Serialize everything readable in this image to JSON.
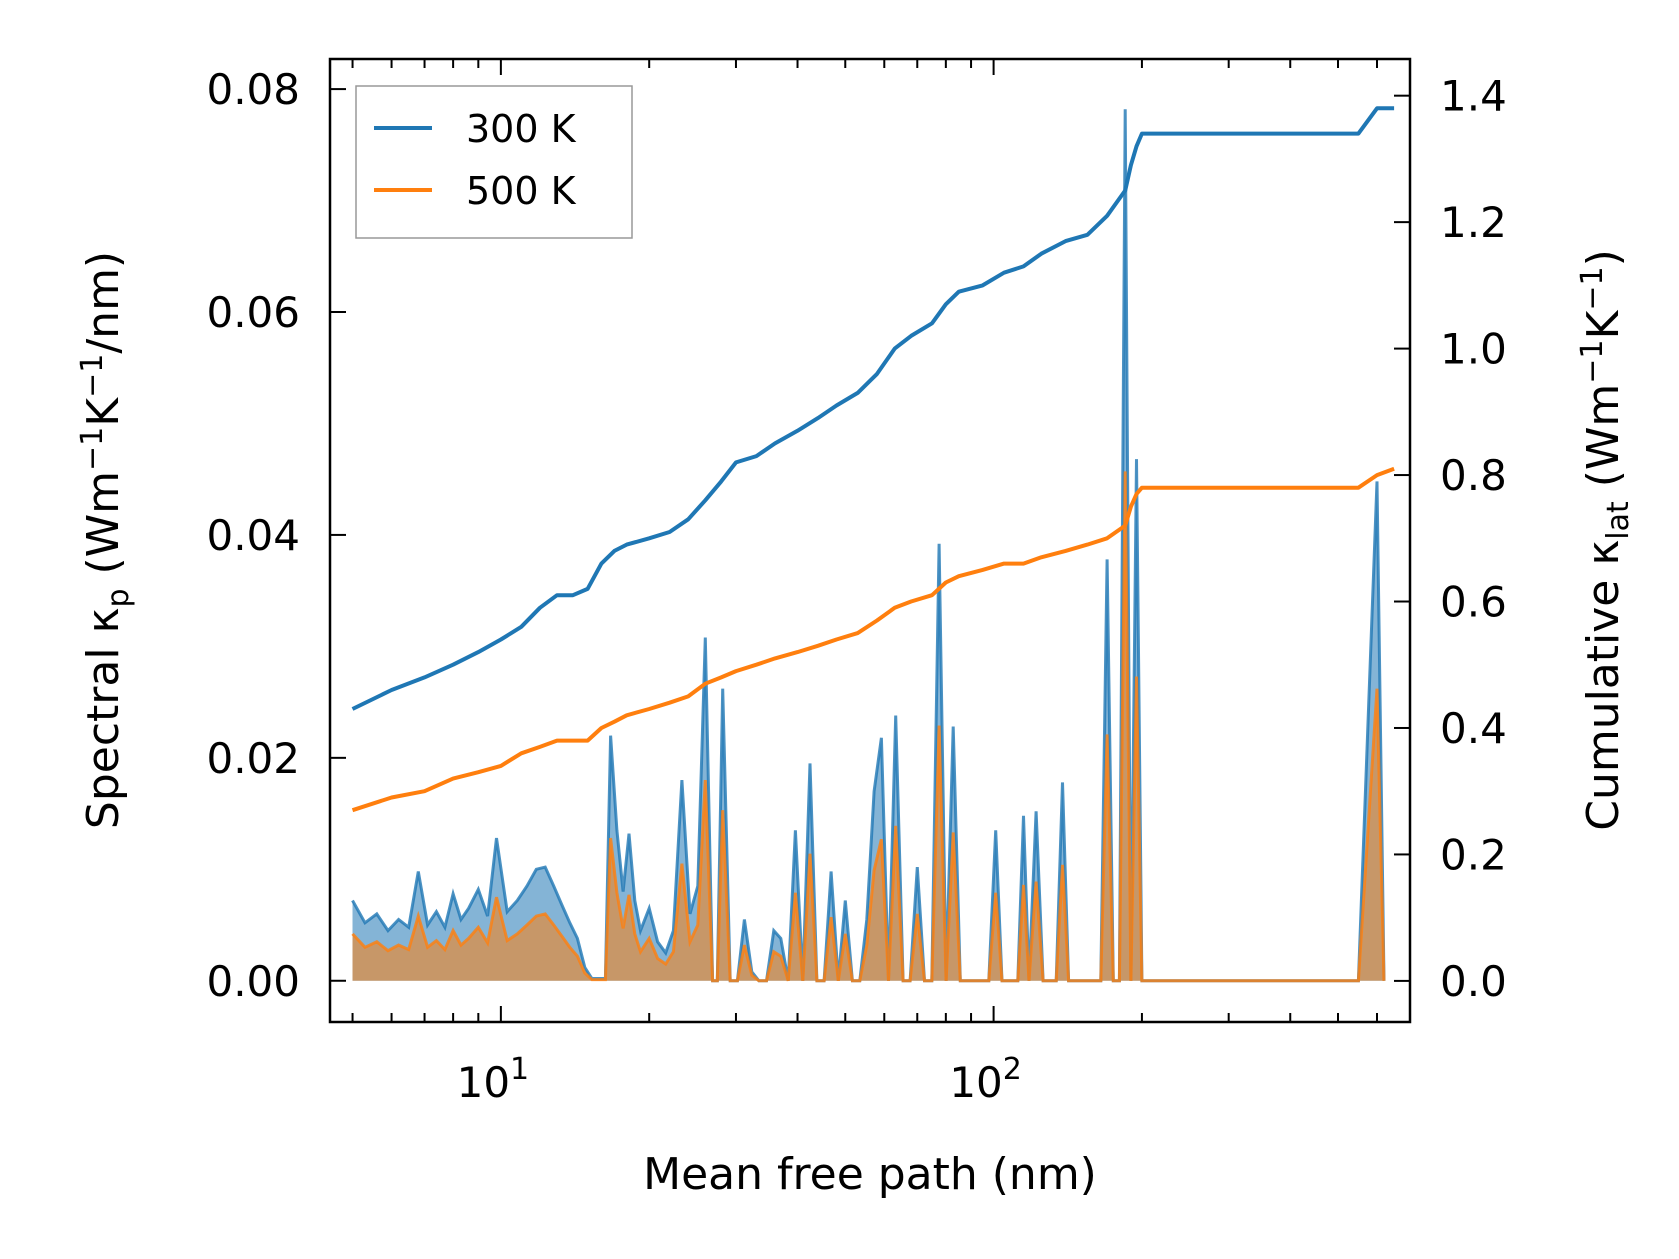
{
  "chart_data": {
    "type": "line+area",
    "x_scale": "log",
    "xlim": [
      4.5,
      700
    ],
    "ylim_left": [
      -0.0037,
      0.0827
    ],
    "ylim_right": [
      -0.065,
      1.458
    ],
    "xlabel": "Mean free path (nm)",
    "ylabel_left": {
      "main": "Spectral κ",
      "sub": "p",
      "unit_pre": " (Wm",
      "exp1": "−1",
      "unit_mid": "K",
      "exp2": "−1",
      "unit_post": "/nm)"
    },
    "ylabel_right": {
      "main": "Cumulative κ",
      "sub": "lat",
      "unit_pre": " (Wm",
      "exp1": "−1",
      "unit_mid": "K",
      "exp2": "−1",
      "unit_post": ")"
    },
    "x_ticks": [
      {
        "value": 10,
        "base": "10",
        "exp": "1"
      },
      {
        "value": 100,
        "base": "10",
        "exp": "2"
      }
    ],
    "y_left_ticks": [
      "0.00",
      "0.02",
      "0.04",
      "0.06",
      "0.08"
    ],
    "y_right_ticks": [
      "0.0",
      "0.2",
      "0.4",
      "0.6",
      "0.8",
      "1.0",
      "1.2",
      "1.4"
    ],
    "legend": {
      "position": "upper-left",
      "entries": [
        {
          "label": "300 K",
          "color": "#1f77b4"
        },
        {
          "label": "500 K",
          "color": "#ff7f0e"
        }
      ]
    },
    "cumulative_series": [
      {
        "name": "300 K",
        "color": "#1f77b4",
        "axis": "right",
        "points": [
          [
            5,
            0.43
          ],
          [
            6,
            0.46
          ],
          [
            7,
            0.48
          ],
          [
            8,
            0.5
          ],
          [
            9,
            0.52
          ],
          [
            10,
            0.54
          ],
          [
            11,
            0.56
          ],
          [
            12,
            0.59
          ],
          [
            13,
            0.61
          ],
          [
            14,
            0.61
          ],
          [
            15,
            0.62
          ],
          [
            16,
            0.66
          ],
          [
            17,
            0.68
          ],
          [
            18,
            0.69
          ],
          [
            20,
            0.7
          ],
          [
            22,
            0.71
          ],
          [
            24,
            0.73
          ],
          [
            26,
            0.76
          ],
          [
            28,
            0.79
          ],
          [
            30,
            0.82
          ],
          [
            33,
            0.83
          ],
          [
            36,
            0.85
          ],
          [
            40,
            0.87
          ],
          [
            44,
            0.89
          ],
          [
            48,
            0.91
          ],
          [
            53,
            0.93
          ],
          [
            58,
            0.96
          ],
          [
            63,
            1.0
          ],
          [
            68,
            1.02
          ],
          [
            75,
            1.04
          ],
          [
            80,
            1.07
          ],
          [
            85,
            1.09
          ],
          [
            95,
            1.1
          ],
          [
            105,
            1.12
          ],
          [
            115,
            1.13
          ],
          [
            125,
            1.15
          ],
          [
            140,
            1.17
          ],
          [
            155,
            1.18
          ],
          [
            170,
            1.21
          ],
          [
            185,
            1.25
          ],
          [
            190,
            1.29
          ],
          [
            195,
            1.32
          ],
          [
            200,
            1.34
          ],
          [
            550,
            1.34
          ],
          [
            600,
            1.38
          ],
          [
            650,
            1.38
          ]
        ]
      },
      {
        "name": "500 K",
        "color": "#ff7f0e",
        "axis": "right",
        "points": [
          [
            5,
            0.27
          ],
          [
            6,
            0.29
          ],
          [
            7,
            0.3
          ],
          [
            8,
            0.32
          ],
          [
            9,
            0.33
          ],
          [
            10,
            0.34
          ],
          [
            11,
            0.36
          ],
          [
            12,
            0.37
          ],
          [
            13,
            0.38
          ],
          [
            15,
            0.38
          ],
          [
            16,
            0.4
          ],
          [
            17,
            0.41
          ],
          [
            18,
            0.42
          ],
          [
            20,
            0.43
          ],
          [
            22,
            0.44
          ],
          [
            24,
            0.45
          ],
          [
            26,
            0.47
          ],
          [
            28,
            0.48
          ],
          [
            30,
            0.49
          ],
          [
            33,
            0.5
          ],
          [
            36,
            0.51
          ],
          [
            40,
            0.52
          ],
          [
            44,
            0.53
          ],
          [
            48,
            0.54
          ],
          [
            53,
            0.55
          ],
          [
            58,
            0.57
          ],
          [
            63,
            0.59
          ],
          [
            68,
            0.6
          ],
          [
            75,
            0.61
          ],
          [
            80,
            0.63
          ],
          [
            85,
            0.64
          ],
          [
            95,
            0.65
          ],
          [
            105,
            0.66
          ],
          [
            115,
            0.66
          ],
          [
            125,
            0.67
          ],
          [
            140,
            0.68
          ],
          [
            155,
            0.69
          ],
          [
            170,
            0.7
          ],
          [
            185,
            0.72
          ],
          [
            190,
            0.75
          ],
          [
            195,
            0.77
          ],
          [
            200,
            0.78
          ],
          [
            550,
            0.78
          ],
          [
            600,
            0.8
          ],
          [
            650,
            0.81
          ]
        ]
      }
    ],
    "spectral_series": [
      {
        "name": "300 K",
        "color": "#1f77b4",
        "axis": "left",
        "points": [
          [
            5,
            0.0072
          ],
          [
            5.3,
            0.0052
          ],
          [
            5.6,
            0.006
          ],
          [
            5.9,
            0.0045
          ],
          [
            6.2,
            0.0055
          ],
          [
            6.5,
            0.0048
          ],
          [
            6.8,
            0.0098
          ],
          [
            7.1,
            0.005
          ],
          [
            7.4,
            0.0062
          ],
          [
            7.7,
            0.0048
          ],
          [
            8,
            0.0078
          ],
          [
            8.3,
            0.0055
          ],
          [
            8.6,
            0.0065
          ],
          [
            9,
            0.0082
          ],
          [
            9.4,
            0.0058
          ],
          [
            9.8,
            0.0128
          ],
          [
            10.3,
            0.0062
          ],
          [
            10.8,
            0.0072
          ],
          [
            11.3,
            0.0085
          ],
          [
            11.8,
            0.01
          ],
          [
            12.3,
            0.0102
          ],
          [
            12.8,
            0.0085
          ],
          [
            13.3,
            0.0068
          ],
          [
            13.8,
            0.0052
          ],
          [
            14.3,
            0.0038
          ],
          [
            14.8,
            0.0012
          ],
          [
            15.3,
            0.0002
          ],
          [
            16.3,
            0.0002
          ],
          [
            16.7,
            0.022
          ],
          [
            17.2,
            0.0135
          ],
          [
            17.7,
            0.008
          ],
          [
            18.2,
            0.0132
          ],
          [
            18.7,
            0.0072
          ],
          [
            19.2,
            0.0045
          ],
          [
            20,
            0.0065
          ],
          [
            20.8,
            0.0035
          ],
          [
            21.6,
            0.0025
          ],
          [
            22.4,
            0.0045
          ],
          [
            23.3,
            0.018
          ],
          [
            24.2,
            0.006
          ],
          [
            25.1,
            0.0085
          ],
          [
            26,
            0.0308
          ],
          [
            26.9,
            0.0
          ],
          [
            27.5,
            0.0
          ],
          [
            28.2,
            0.0262
          ],
          [
            29.2,
            0.0
          ],
          [
            30.2,
            0.0
          ],
          [
            31.2,
            0.0055
          ],
          [
            32.3,
            0.0008
          ],
          [
            33.4,
            0.0
          ],
          [
            34.6,
            0.0
          ],
          [
            35.8,
            0.0045
          ],
          [
            37,
            0.0038
          ],
          [
            38.3,
            0.0
          ],
          [
            39.6,
            0.0135
          ],
          [
            41,
            0.0
          ],
          [
            42.4,
            0.0195
          ],
          [
            43.8,
            0.0
          ],
          [
            45.3,
            0.0
          ],
          [
            46.8,
            0.0098
          ],
          [
            48.4,
            0.0
          ],
          [
            50,
            0.0072
          ],
          [
            51.7,
            0.0
          ],
          [
            53.5,
            0.0
          ],
          [
            55.3,
            0.0055
          ],
          [
            57.2,
            0.017
          ],
          [
            59.2,
            0.0218
          ],
          [
            61.2,
            0.0
          ],
          [
            63.3,
            0.0238
          ],
          [
            65.5,
            0.0
          ],
          [
            67.7,
            0.0
          ],
          [
            70,
            0.0102
          ],
          [
            72.4,
            0.0
          ],
          [
            74.9,
            0.0
          ],
          [
            77.5,
            0.0392
          ],
          [
            80.1,
            0.0
          ],
          [
            82.8,
            0.0228
          ],
          [
            85.6,
            0.0
          ],
          [
            88.5,
            0.0
          ],
          [
            91.5,
            0.0
          ],
          [
            94.6,
            0.0
          ],
          [
            97.8,
            0.0
          ],
          [
            101,
            0.0135
          ],
          [
            104,
            0.0
          ],
          [
            112,
            0.0
          ],
          [
            115,
            0.0148
          ],
          [
            118,
            0.0
          ],
          [
            122,
            0.0152
          ],
          [
            126,
            0.0
          ],
          [
            130,
            0.0
          ],
          [
            134,
            0.0
          ],
          [
            138,
            0.0178
          ],
          [
            142,
            0.0
          ],
          [
            165,
            0.0
          ],
          [
            170,
            0.0378
          ],
          [
            175,
            0.0
          ],
          [
            180,
            0.0
          ],
          [
            185,
            0.0782
          ],
          [
            190,
            0.0
          ],
          [
            195,
            0.0468
          ],
          [
            200,
            0.0
          ],
          [
            550,
            0.0
          ],
          [
            600,
            0.0448
          ],
          [
            620,
            0.0
          ]
        ]
      },
      {
        "name": "500 K",
        "color": "#ff7f0e",
        "axis": "left",
        "points": [
          [
            5,
            0.0042
          ],
          [
            5.3,
            0.003
          ],
          [
            5.6,
            0.0035
          ],
          [
            5.9,
            0.0027
          ],
          [
            6.2,
            0.0032
          ],
          [
            6.5,
            0.0028
          ],
          [
            6.8,
            0.0058
          ],
          [
            7.1,
            0.003
          ],
          [
            7.4,
            0.0036
          ],
          [
            7.7,
            0.0028
          ],
          [
            8,
            0.0045
          ],
          [
            8.3,
            0.0032
          ],
          [
            8.6,
            0.0038
          ],
          [
            9,
            0.0048
          ],
          [
            9.4,
            0.0034
          ],
          [
            9.8,
            0.0075
          ],
          [
            10.3,
            0.0036
          ],
          [
            10.8,
            0.0042
          ],
          [
            11.3,
            0.005
          ],
          [
            11.8,
            0.0058
          ],
          [
            12.3,
            0.006
          ],
          [
            12.8,
            0.005
          ],
          [
            13.3,
            0.004
          ],
          [
            13.8,
            0.003
          ],
          [
            14.3,
            0.0022
          ],
          [
            14.8,
            0.0007
          ],
          [
            15.3,
            0.0001
          ],
          [
            16.3,
            0.0001
          ],
          [
            16.7,
            0.0128
          ],
          [
            17.2,
            0.0079
          ],
          [
            17.7,
            0.0047
          ],
          [
            18.2,
            0.0077
          ],
          [
            18.7,
            0.0042
          ],
          [
            19.2,
            0.0026
          ],
          [
            20,
            0.0038
          ],
          [
            20.8,
            0.002
          ],
          [
            21.6,
            0.0015
          ],
          [
            22.4,
            0.0026
          ],
          [
            23.3,
            0.0105
          ],
          [
            24.2,
            0.0035
          ],
          [
            25.1,
            0.005
          ],
          [
            26,
            0.018
          ],
          [
            26.9,
            0.0
          ],
          [
            27.5,
            0.0
          ],
          [
            28.2,
            0.0153
          ],
          [
            29.2,
            0.0
          ],
          [
            30.2,
            0.0
          ],
          [
            31.2,
            0.0032
          ],
          [
            32.3,
            0.0005
          ],
          [
            33.4,
            0.0
          ],
          [
            34.6,
            0.0
          ],
          [
            35.8,
            0.0026
          ],
          [
            37,
            0.0022
          ],
          [
            38.3,
            0.0
          ],
          [
            39.6,
            0.0079
          ],
          [
            41,
            0.0
          ],
          [
            42.4,
            0.0114
          ],
          [
            43.8,
            0.0
          ],
          [
            45.3,
            0.0
          ],
          [
            46.8,
            0.0057
          ],
          [
            48.4,
            0.0
          ],
          [
            50,
            0.0042
          ],
          [
            51.7,
            0.0
          ],
          [
            53.5,
            0.0
          ],
          [
            55.3,
            0.0032
          ],
          [
            57.2,
            0.0099
          ],
          [
            59.2,
            0.0127
          ],
          [
            61.2,
            0.0
          ],
          [
            63.3,
            0.0139
          ],
          [
            65.5,
            0.0
          ],
          [
            67.7,
            0.0
          ],
          [
            70,
            0.006
          ],
          [
            72.4,
            0.0
          ],
          [
            74.9,
            0.0
          ],
          [
            77.5,
            0.0229
          ],
          [
            80.1,
            0.0
          ],
          [
            82.8,
            0.0133
          ],
          [
            85.6,
            0.0
          ],
          [
            88.5,
            0.0
          ],
          [
            91.5,
            0.0
          ],
          [
            94.6,
            0.0
          ],
          [
            97.8,
            0.0
          ],
          [
            101,
            0.0079
          ],
          [
            104,
            0.0
          ],
          [
            112,
            0.0
          ],
          [
            115,
            0.0086
          ],
          [
            118,
            0.0
          ],
          [
            122,
            0.0089
          ],
          [
            126,
            0.0
          ],
          [
            130,
            0.0
          ],
          [
            134,
            0.0
          ],
          [
            138,
            0.0104
          ],
          [
            142,
            0.0
          ],
          [
            165,
            0.0
          ],
          [
            170,
            0.0221
          ],
          [
            175,
            0.0
          ],
          [
            180,
            0.0
          ],
          [
            185,
            0.0457
          ],
          [
            190,
            0.0
          ],
          [
            195,
            0.0273
          ],
          [
            200,
            0.0
          ],
          [
            550,
            0.0
          ],
          [
            600,
            0.0262
          ],
          [
            620,
            0.0
          ]
        ]
      }
    ]
  }
}
